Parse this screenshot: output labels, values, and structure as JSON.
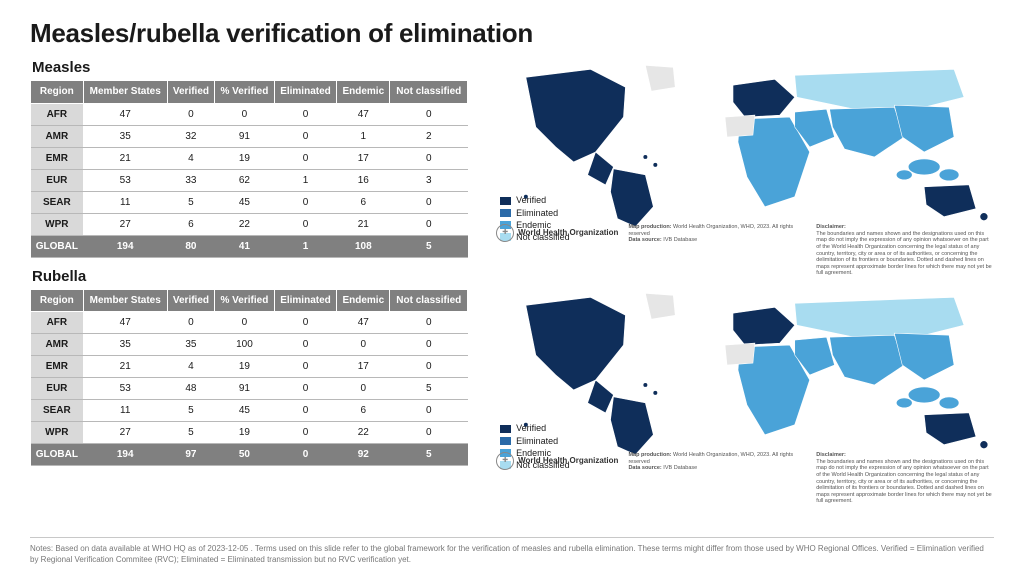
{
  "title": "Measles/rubella verification of elimination",
  "columns": [
    "Region",
    "Member States",
    "Verified",
    "% Verified",
    "Eliminated",
    "Endemic",
    "Not classified"
  ],
  "measles": {
    "label": "Measles",
    "rows": [
      [
        "AFR",
        "47",
        "0",
        "0",
        "0",
        "47",
        "0"
      ],
      [
        "AMR",
        "35",
        "32",
        "91",
        "0",
        "1",
        "2"
      ],
      [
        "EMR",
        "21",
        "4",
        "19",
        "0",
        "17",
        "0"
      ],
      [
        "EUR",
        "53",
        "33",
        "62",
        "1",
        "16",
        "3"
      ],
      [
        "SEAR",
        "11",
        "5",
        "45",
        "0",
        "6",
        "0"
      ],
      [
        "WPR",
        "27",
        "6",
        "22",
        "0",
        "21",
        "0"
      ]
    ],
    "total": [
      "GLOBAL",
      "194",
      "80",
      "41",
      "1",
      "108",
      "5"
    ]
  },
  "rubella": {
    "label": "Rubella",
    "rows": [
      [
        "AFR",
        "47",
        "0",
        "0",
        "0",
        "47",
        "0"
      ],
      [
        "AMR",
        "35",
        "35",
        "100",
        "0",
        "0",
        "0"
      ],
      [
        "EMR",
        "21",
        "4",
        "19",
        "0",
        "17",
        "0"
      ],
      [
        "EUR",
        "53",
        "48",
        "91",
        "0",
        "0",
        "5"
      ],
      [
        "SEAR",
        "11",
        "5",
        "45",
        "0",
        "6",
        "0"
      ],
      [
        "WPR",
        "27",
        "5",
        "19",
        "0",
        "22",
        "0"
      ]
    ],
    "total": [
      "GLOBAL",
      "194",
      "97",
      "50",
      "0",
      "92",
      "5"
    ]
  },
  "legend": {
    "items": [
      "Verified",
      "Eliminated",
      "Endemic",
      "Not classified"
    ],
    "colors": [
      "#0f2e5a",
      "#2a6aa8",
      "#4aa3d8",
      "#a8dcf0"
    ]
  },
  "map": {
    "colors": {
      "verified": "#0f2e5a",
      "eliminated": "#2a6aa8",
      "endemic": "#4aa3d8",
      "not_classified": "#a8dcf0",
      "nodata": "#e6e6e6",
      "stroke": "#ffffff"
    }
  },
  "map_footer": {
    "org": "World Health Organization",
    "prod_label": "Map production:",
    "prod_value": "World Health Organization, WHO, 2023. All rights reserved",
    "src_label": "Data source:",
    "src_value": "IVB Database",
    "disclaimer_label": "Disclaimer:",
    "disclaimer_value": "The boundaries and names shown and the designations used on this map do not imply the expression of any opinion whatsoever on the part of the World Health Organization concerning the legal status of any country, territory, city or area or of its authorities, or concerning the delimitation of its frontiers or boundaries. Dotted and dashed lines on maps represent approximate border lines for which there may not yet be full agreement."
  },
  "footnote": "Notes: Based on data available at WHO HQ as of 2023-12-05 . Terms used on this slide refer to the global framework for the verification of measles and rubella elimination. These terms might differ from those used by WHO Regional Offices. Verified = Elimination verified by Regional Verification Commitee (RVC); Eliminated = Eliminated transmission but no RVC verification yet."
}
